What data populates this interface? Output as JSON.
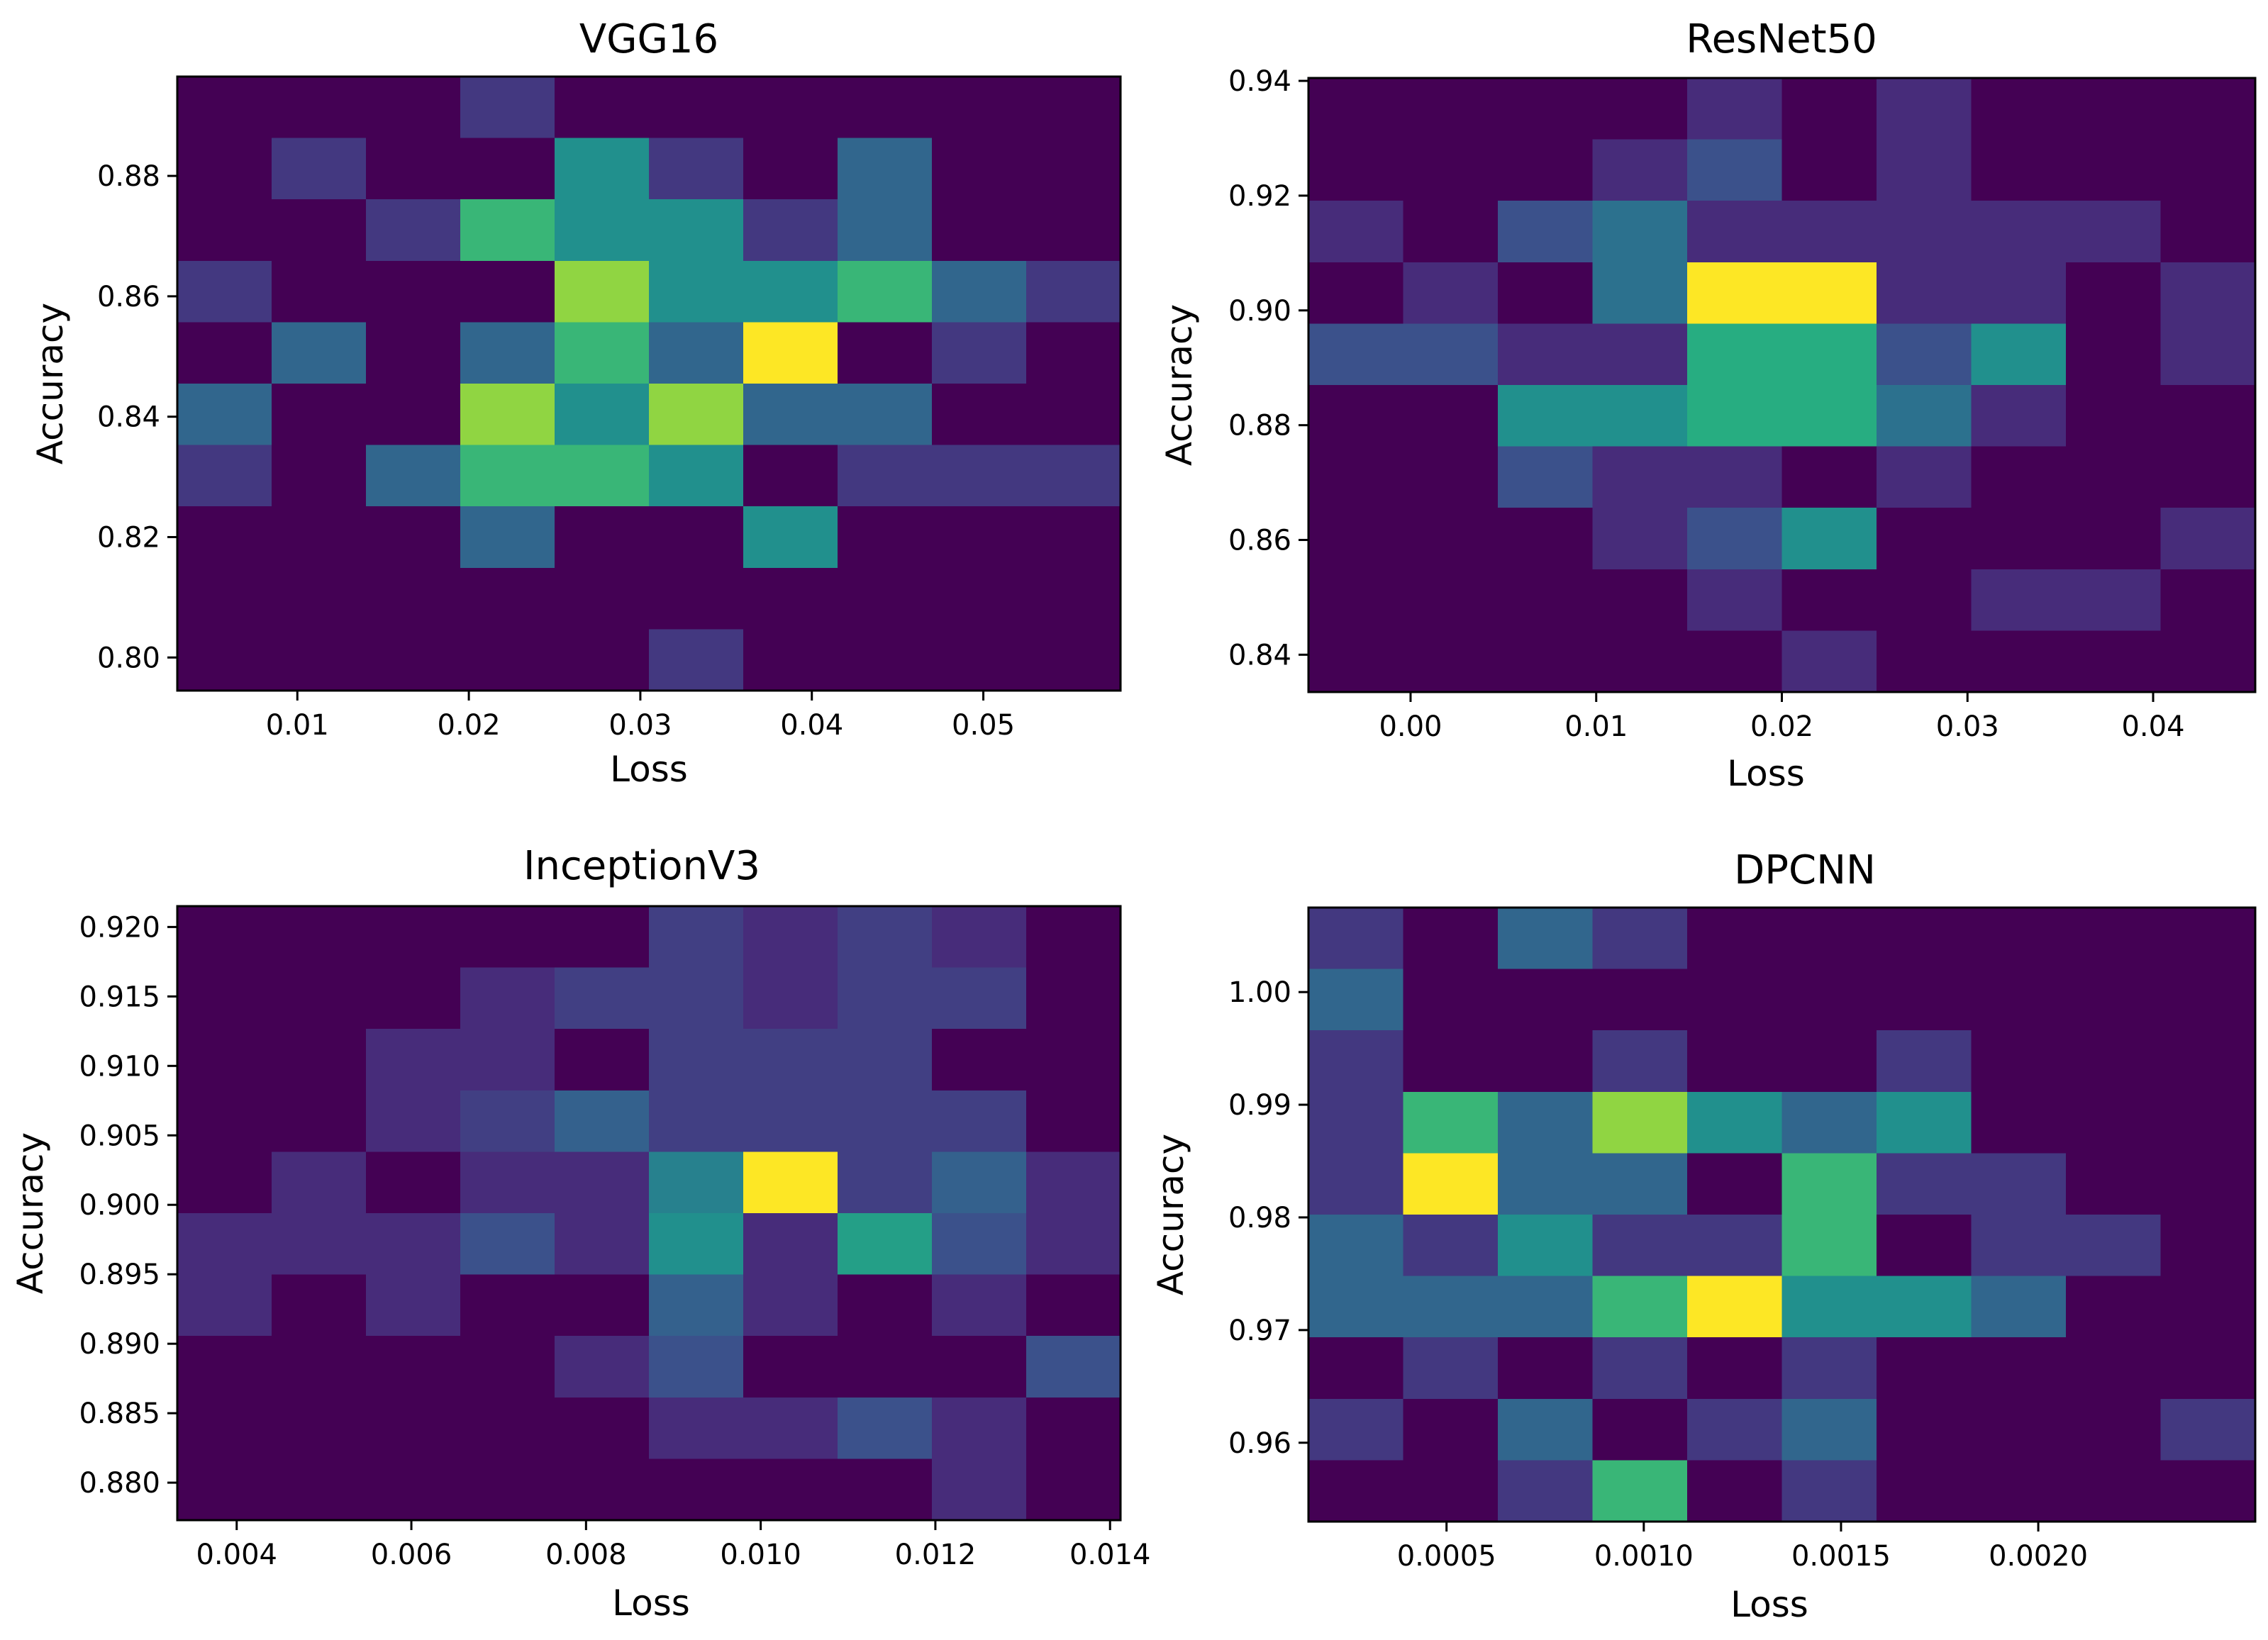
{
  "chart_data": [
    {
      "type": "heatmap",
      "title": "VGG16",
      "xlabel": "Loss",
      "ylabel": "Accuracy",
      "xlim": [
        0.003,
        0.058
      ],
      "ylim": [
        0.7945,
        0.8965
      ],
      "xticks": [
        0.01,
        0.02,
        0.03,
        0.04,
        0.05
      ],
      "yticks": [
        0.8,
        0.82,
        0.84,
        0.86,
        0.88
      ],
      "xtick_labels": [
        "0.01",
        "0.02",
        "0.03",
        "0.04",
        "0.05"
      ],
      "ytick_labels": [
        "0.80",
        "0.82",
        "0.84",
        "0.86",
        "0.88"
      ],
      "x_edges": [
        0.003,
        0.0085,
        0.014,
        0.0195,
        0.025,
        0.0305,
        0.036,
        0.0415,
        0.047,
        0.0525,
        0.058
      ],
      "y_edges": [
        0.7945,
        0.8047,
        0.8149,
        0.8251,
        0.8353,
        0.8455,
        0.8557,
        0.8659,
        0.8761,
        0.8863,
        0.8965
      ],
      "values": [
        [
          0,
          0,
          0,
          1,
          0,
          0,
          0,
          0,
          0,
          0
        ],
        [
          0,
          1,
          0,
          0,
          3,
          1,
          0,
          2,
          0,
          0
        ],
        [
          0,
          0,
          1,
          4,
          3,
          3,
          1,
          2,
          0,
          0
        ],
        [
          1,
          0,
          0,
          0,
          5,
          3,
          3,
          4,
          2,
          1
        ],
        [
          0,
          2,
          0,
          2,
          4,
          2,
          6,
          0,
          1,
          0
        ],
        [
          2,
          0,
          0,
          5,
          3,
          5,
          2,
          2,
          0,
          0
        ],
        [
          1,
          0,
          2,
          4,
          4,
          3,
          0,
          1,
          1,
          1
        ],
        [
          0,
          0,
          0,
          2,
          0,
          0,
          3,
          0,
          0,
          0
        ],
        [
          0,
          0,
          0,
          0,
          0,
          0,
          0,
          0,
          0,
          0
        ],
        [
          0,
          0,
          0,
          0,
          0,
          1,
          0,
          0,
          0,
          0
        ]
      ],
      "vmax": 6
    },
    {
      "type": "heatmap",
      "title": "ResNet50",
      "xlabel": "Loss",
      "ylabel": "Accuracy",
      "xlim": [
        -0.0055,
        0.0455
      ],
      "ylim": [
        0.8335,
        0.9405
      ],
      "xticks": [
        0.0,
        0.01,
        0.02,
        0.03,
        0.04
      ],
      "yticks": [
        0.84,
        0.86,
        0.88,
        0.9,
        0.92,
        0.94
      ],
      "xtick_labels": [
        "0.00",
        "0.01",
        "0.02",
        "0.03",
        "0.04"
      ],
      "ytick_labels": [
        "0.84",
        "0.86",
        "0.88",
        "0.90",
        "0.92",
        "0.94"
      ],
      "x_edges": [
        -0.0055,
        -0.0004,
        0.0047,
        0.0098,
        0.0149,
        0.02,
        0.0251,
        0.0302,
        0.0353,
        0.0404,
        0.0455
      ],
      "y_edges": [
        0.8335,
        0.8442,
        0.8549,
        0.8656,
        0.8763,
        0.887,
        0.8977,
        0.9084,
        0.9191,
        0.9298,
        0.9405
      ],
      "values": [
        [
          0,
          0,
          0,
          0,
          1,
          0,
          1,
          0,
          0,
          0
        ],
        [
          0,
          0,
          0,
          1,
          2,
          0,
          1,
          0,
          0,
          0
        ],
        [
          1,
          0,
          2,
          3,
          1,
          1,
          1,
          1,
          1,
          0
        ],
        [
          0,
          1,
          0,
          3,
          8,
          8,
          1,
          1,
          0,
          1
        ],
        [
          2,
          2,
          1,
          1,
          5,
          5,
          2,
          4,
          0,
          1
        ],
        [
          0,
          0,
          4,
          4,
          5,
          5,
          3,
          1,
          0,
          0
        ],
        [
          0,
          0,
          2,
          1,
          1,
          0,
          1,
          0,
          0,
          0
        ],
        [
          0,
          0,
          0,
          1,
          2,
          4,
          0,
          0,
          0,
          1
        ],
        [
          0,
          0,
          0,
          0,
          1,
          0,
          0,
          1,
          1,
          0
        ],
        [
          0,
          0,
          0,
          0,
          0,
          1,
          0,
          0,
          0,
          0
        ]
      ],
      "vmax": 8
    },
    {
      "type": "heatmap",
      "title": "InceptionV3",
      "xlabel": "Loss",
      "ylabel": "Accuracy",
      "xlim": [
        0.00332,
        0.01412
      ],
      "ylim": [
        0.8773,
        0.9215
      ],
      "xticks": [
        0.004,
        0.006,
        0.008,
        0.01,
        0.012,
        0.014
      ],
      "yticks": [
        0.88,
        0.885,
        0.89,
        0.895,
        0.9,
        0.905,
        0.91,
        0.915,
        0.92
      ],
      "xtick_labels": [
        "0.004",
        "0.006",
        "0.008",
        "0.010",
        "0.012",
        "0.014"
      ],
      "ytick_labels": [
        "0.880",
        "0.885",
        "0.890",
        "0.895",
        "0.900",
        "0.905",
        "0.910",
        "0.915",
        "0.920"
      ],
      "x_edges": [
        0.00332,
        0.0044,
        0.00548,
        0.00656,
        0.00764,
        0.00872,
        0.0098,
        0.01088,
        0.01196,
        0.01304,
        0.01412
      ],
      "y_edges": [
        0.8773,
        0.88172,
        0.88614,
        0.89056,
        0.89498,
        0.8994,
        0.90382,
        0.90824,
        0.91266,
        0.91708,
        0.9215
      ],
      "values": [
        [
          0,
          0,
          0,
          0,
          0,
          3,
          2,
          3,
          2,
          0
        ],
        [
          0,
          0,
          0,
          2,
          3,
          3,
          2,
          3,
          3,
          0
        ],
        [
          0,
          0,
          2,
          2,
          0,
          3,
          3,
          3,
          0,
          0
        ],
        [
          0,
          0,
          2,
          3,
          5,
          3,
          3,
          3,
          3,
          0
        ],
        [
          0,
          2,
          0,
          2,
          2,
          7,
          16,
          3,
          5,
          2
        ],
        [
          2,
          2,
          2,
          4,
          2,
          8,
          2,
          9,
          4,
          2
        ],
        [
          2,
          0,
          2,
          0,
          0,
          5,
          2,
          0,
          2,
          0
        ],
        [
          0,
          0,
          0,
          0,
          2,
          4,
          0,
          0,
          0,
          4
        ],
        [
          0,
          0,
          0,
          0,
          0,
          2,
          2,
          4,
          2,
          0
        ],
        [
          0,
          0,
          0,
          0,
          0,
          0,
          0,
          0,
          2,
          0
        ]
      ],
      "vmax": 16
    },
    {
      "type": "heatmap",
      "title": "DPCNN",
      "xlabel": "Loss",
      "ylabel": "Accuracy",
      "xlim": [
        0.00015,
        0.00255
      ],
      "ylim": [
        0.953,
        1.0075
      ],
      "xticks": [
        0.0005,
        0.001,
        0.0015,
        0.002
      ],
      "yticks": [
        0.96,
        0.97,
        0.98,
        0.99,
        1.0
      ],
      "xtick_labels": [
        "0.0005",
        "0.0010",
        "0.0015",
        "0.0020"
      ],
      "ytick_labels": [
        "0.96",
        "0.97",
        "0.98",
        "0.99",
        "1.00"
      ],
      "x_edges": [
        0.00015,
        0.00039,
        0.00063,
        0.00087,
        0.00111,
        0.00135,
        0.00159,
        0.00183,
        0.00207,
        0.00231,
        0.00255
      ],
      "y_edges": [
        0.953,
        0.95845,
        0.9639,
        0.96935,
        0.9748,
        0.98025,
        0.9857,
        0.99115,
        0.9966,
        1.00205,
        1.0075
      ],
      "values": [
        [
          1,
          0,
          2,
          1,
          0,
          0,
          0,
          0,
          0,
          0
        ],
        [
          2,
          0,
          0,
          0,
          0,
          0,
          0,
          0,
          0,
          0
        ],
        [
          1,
          0,
          0,
          1,
          0,
          0,
          1,
          0,
          0,
          0
        ],
        [
          1,
          4,
          2,
          5,
          3,
          2,
          3,
          0,
          0,
          0
        ],
        [
          1,
          6,
          2,
          2,
          0,
          4,
          1,
          1,
          0,
          0
        ],
        [
          2,
          1,
          3,
          1,
          1,
          4,
          0,
          1,
          1,
          0
        ],
        [
          2,
          2,
          2,
          4,
          6,
          3,
          3,
          2,
          0,
          0
        ],
        [
          0,
          1,
          0,
          1,
          0,
          1,
          0,
          0,
          0,
          0
        ],
        [
          1,
          0,
          2,
          0,
          1,
          2,
          0,
          0,
          0,
          1
        ],
        [
          0,
          0,
          1,
          4,
          0,
          1,
          0,
          0,
          0,
          0
        ]
      ],
      "vmax": 6
    }
  ]
}
